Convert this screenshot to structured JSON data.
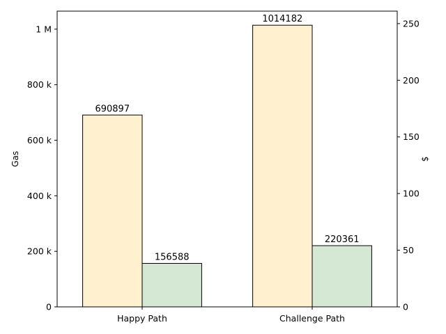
{
  "chart_data": {
    "type": "bar",
    "categories": [
      "Happy Path",
      "Challenge Path"
    ],
    "series": [
      {
        "values": [
          690897,
          1014182
        ],
        "color": "#fff1cf",
        "show_labels": true
      },
      {
        "values": [
          156588,
          220361
        ],
        "color": "#d5e8d4",
        "show_labels": true
      }
    ],
    "ylabel": "Gas",
    "ylim": [
      0,
      1064891
    ],
    "yticks": [
      {
        "value": 0,
        "label": "0"
      },
      {
        "value": 200000,
        "label": "200 k"
      },
      {
        "value": 400000,
        "label": "400 k"
      },
      {
        "value": 600000,
        "label": "600 k"
      },
      {
        "value": 800000,
        "label": "800 k"
      },
      {
        "value": 1000000,
        "label": "1 M"
      }
    ],
    "y2label": "$",
    "y2lim": [
      0,
      261
    ],
    "y2ticks": [
      0,
      50,
      100,
      150,
      200,
      250
    ],
    "grid": false,
    "bar_edge_color": "#000000"
  }
}
